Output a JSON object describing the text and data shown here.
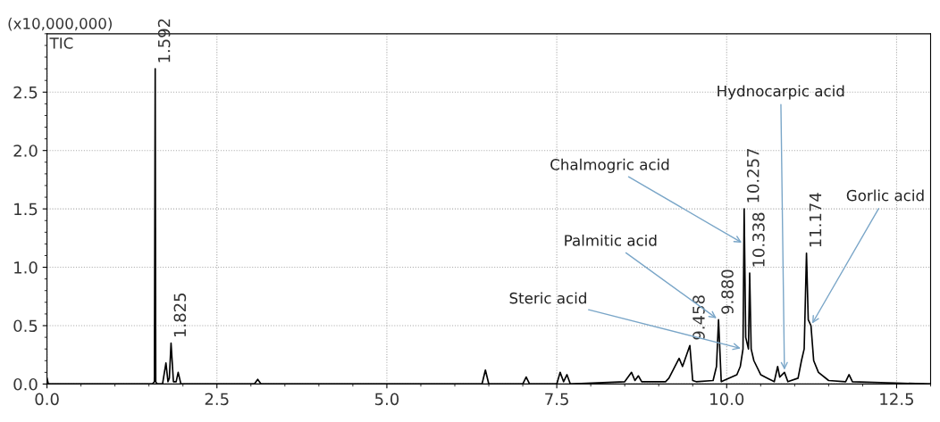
{
  "chart_data": {
    "type": "line",
    "ylabel": "(x10,000,000)",
    "series": [
      {
        "name": "TIC",
        "color": "#000000",
        "x": [
          0.0,
          0.02,
          0.05,
          0.3,
          1.0,
          1.55,
          1.58,
          1.592,
          1.6,
          1.62,
          1.7,
          1.75,
          1.78,
          1.8,
          1.825,
          1.86,
          1.9,
          1.93,
          1.97,
          3.05,
          3.1,
          3.15,
          5.0,
          6.4,
          6.45,
          6.5,
          7.0,
          7.05,
          7.1,
          7.5,
          7.55,
          7.6,
          7.65,
          7.7,
          8.5,
          8.6,
          8.65,
          8.7,
          8.75,
          9.1,
          9.15,
          9.3,
          9.35,
          9.38,
          9.458,
          9.5,
          9.55,
          9.8,
          9.85,
          9.88,
          9.92,
          10.15,
          10.2,
          10.24,
          10.257,
          10.28,
          10.3,
          10.32,
          10.338,
          10.36,
          10.4,
          10.5,
          10.6,
          10.7,
          10.75,
          10.78,
          10.85,
          10.9,
          11.05,
          11.1,
          11.14,
          11.174,
          11.2,
          11.24,
          11.28,
          11.35,
          11.5,
          11.75,
          11.8,
          11.85,
          13.0
        ],
        "values": [
          0.05,
          0.0,
          0.0,
          0.0,
          0.0,
          0.0,
          0.02,
          2.7,
          0.02,
          0.0,
          0.0,
          0.18,
          0.02,
          0.05,
          0.35,
          0.02,
          0.02,
          0.1,
          0.0,
          0.0,
          0.04,
          0.0,
          0.0,
          0.0,
          0.12,
          0.0,
          0.0,
          0.06,
          0.0,
          0.0,
          0.1,
          0.02,
          0.08,
          0.0,
          0.02,
          0.1,
          0.03,
          0.07,
          0.02,
          0.02,
          0.05,
          0.22,
          0.15,
          0.2,
          0.33,
          0.03,
          0.02,
          0.03,
          0.15,
          0.55,
          0.02,
          0.08,
          0.15,
          0.3,
          1.5,
          0.4,
          0.35,
          0.3,
          0.95,
          0.3,
          0.2,
          0.08,
          0.05,
          0.02,
          0.15,
          0.06,
          0.1,
          0.02,
          0.05,
          0.2,
          0.3,
          1.12,
          0.55,
          0.5,
          0.2,
          0.1,
          0.03,
          0.02,
          0.08,
          0.02,
          0.0
        ]
      }
    ],
    "xlim": [
      0,
      13.0
    ],
    "ylim": [
      0,
      3.0
    ],
    "xticks": [
      {
        "value": 0,
        "label": "0.0"
      },
      2.5,
      {
        "value": 5,
        "label": "5.0"
      },
      7.5,
      {
        "value": 10,
        "label": "10.0"
      },
      12.5
    ],
    "yticks": [
      {
        "value": 0,
        "label": "0.0"
      },
      0.5,
      {
        "value": 1,
        "label": "1.0"
      },
      1.5,
      {
        "value": 2,
        "label": "2.0"
      },
      2.5
    ],
    "grid": true,
    "legend": false,
    "line_style": "solid",
    "marker": "none",
    "annotations": [
      {
        "text": "1.592",
        "x": 1.592,
        "y": 2.7
      },
      {
        "text": "1.825",
        "x": 1.825,
        "y": 0.35
      },
      {
        "text": "9.458",
        "x": 9.458,
        "y": 0.33
      },
      {
        "text": "9.880",
        "x": 9.88,
        "y": 0.55
      },
      {
        "text": "10.257",
        "x": 10.257,
        "y": 1.5
      },
      {
        "text": "10.338",
        "x": 10.338,
        "y": 0.95
      },
      {
        "text": "11.174",
        "x": 11.174,
        "y": 1.12
      },
      {
        "text": "Hydnocarpic acid",
        "x": 10.85,
        "y": 0.1
      },
      {
        "text": "Chalmogric acid",
        "x": 10.253,
        "y": 1.2
      },
      {
        "text": "Palmitic acid",
        "x": 9.88,
        "y": 0.55
      },
      {
        "text": "Steric acid",
        "x": 10.24,
        "y": 0.3
      },
      {
        "text": "Gorlic acid",
        "x": 11.24,
        "y": 0.5
      }
    ]
  }
}
